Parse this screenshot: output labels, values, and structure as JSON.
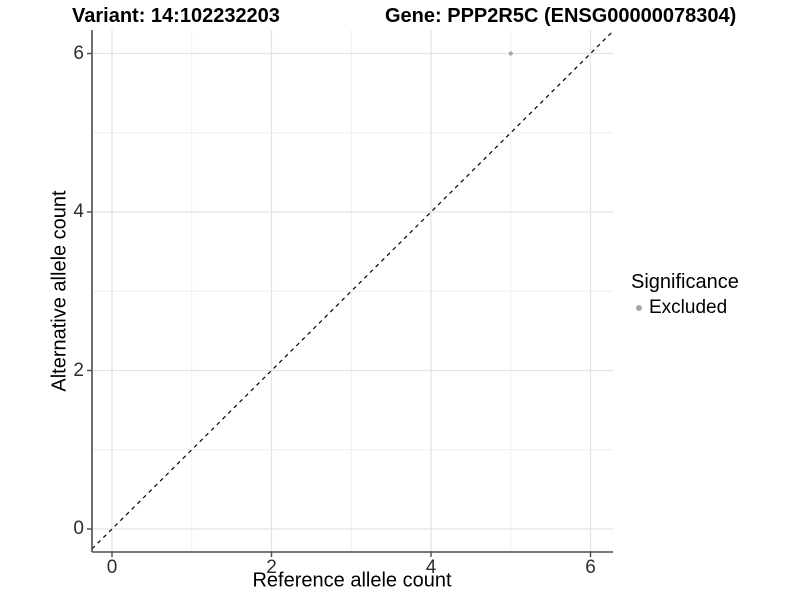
{
  "titles": {
    "left": "Variant: 14:102232203",
    "right": "Gene: PPP2R5C (ENSG00000078304)"
  },
  "chart_data": {
    "type": "scatter",
    "title": "Variant: 14:102232203  |  Gene: PPP2R5C (ENSG00000078304)",
    "xlabel": "Reference allele count",
    "ylabel": "Alternative allele count",
    "xlim": [
      -0.25,
      6.28
    ],
    "ylim": [
      -0.29,
      6.3
    ],
    "x_ticks": [
      "0",
      "2",
      "4",
      "6"
    ],
    "x_tick_values": [
      0,
      2,
      4,
      6
    ],
    "y_ticks": [
      "0",
      "2",
      "4",
      "6"
    ],
    "y_tick_values": [
      0,
      2,
      4,
      6
    ],
    "x_minor_ticks": [
      1,
      3,
      5
    ],
    "y_minor_ticks": [
      1,
      3,
      5
    ],
    "grid": true,
    "reference_line": {
      "kind": "abline",
      "slope": 1,
      "intercept": 0,
      "style": "dashed",
      "color": "#000000"
    },
    "series": [
      {
        "name": "Excluded",
        "color": "#ababab",
        "points": [
          {
            "x": 5,
            "y": 6
          }
        ]
      }
    ],
    "legend": {
      "title": "Significance",
      "position": "right",
      "entries": [
        {
          "label": "Excluded",
          "color": "#a6a6a6"
        }
      ]
    }
  },
  "colors": {
    "background": "#ffffff",
    "grid_major": "#e3e3e3",
    "grid_minor": "#efefef",
    "axis_line": "#4d4d4d",
    "tick_mark": "#4d4d4d",
    "tick_label": "#2e2e2e",
    "point": "#ababab",
    "reference_line": "#000000"
  }
}
